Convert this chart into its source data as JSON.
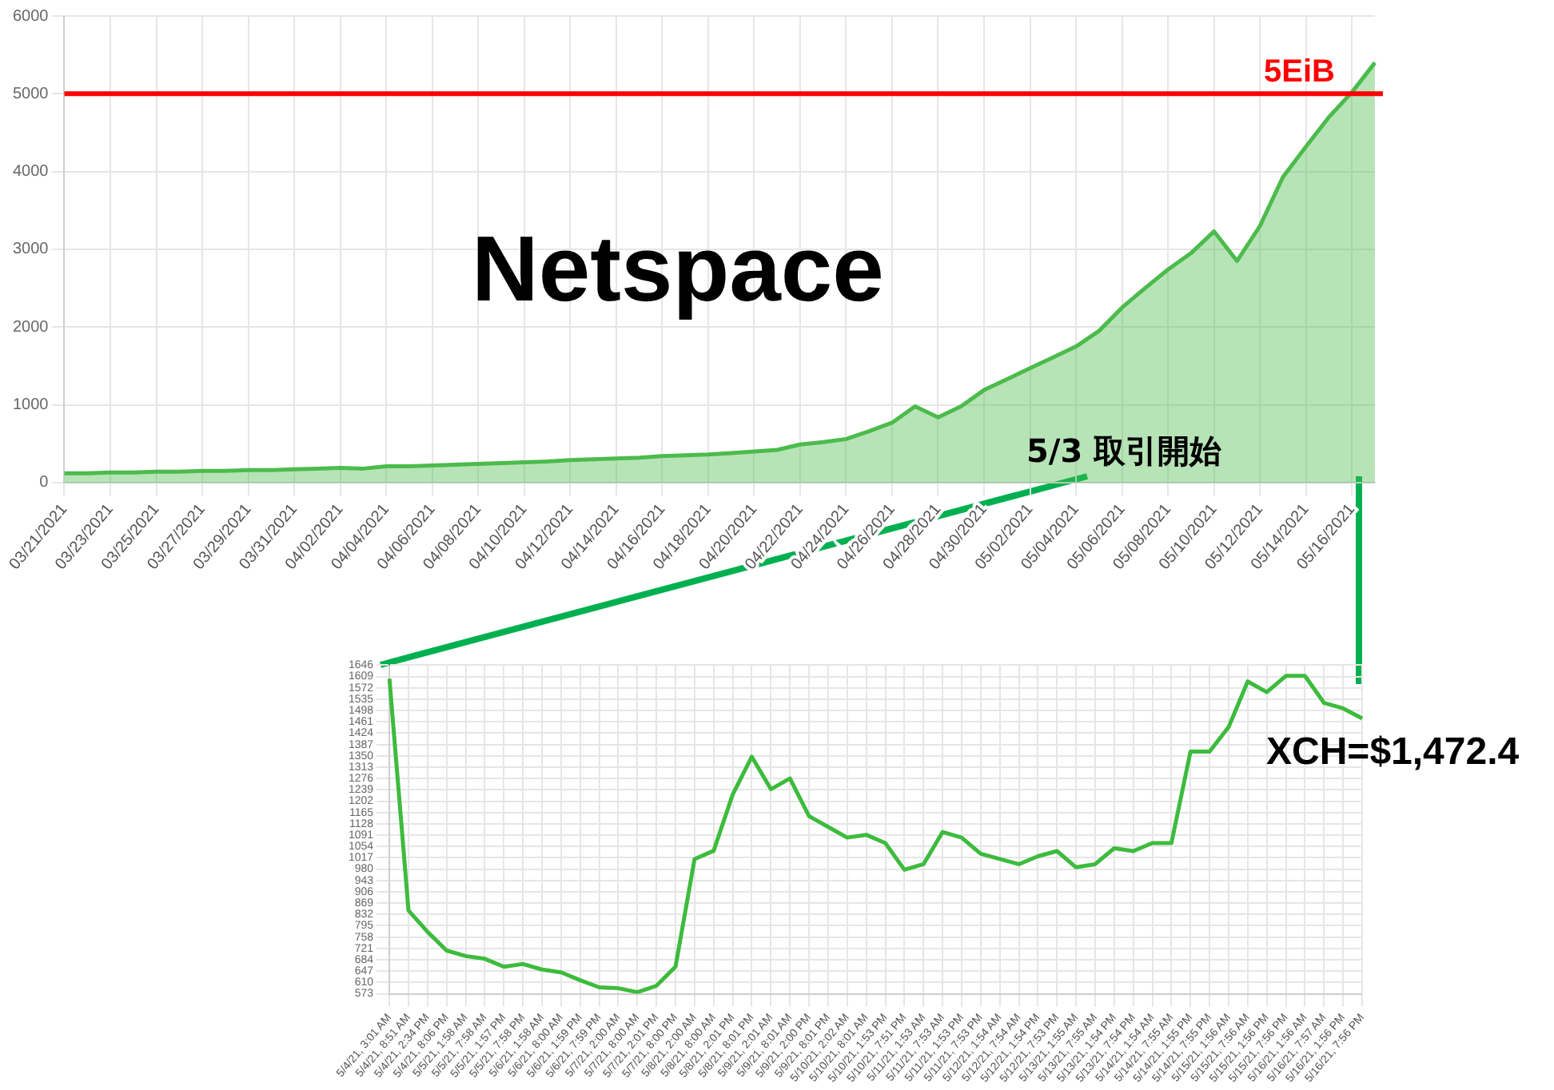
{
  "chart_data": [
    {
      "type": "area",
      "title": "Netspace",
      "categories": [
        "03/21/2021",
        null,
        "03/23/2021",
        null,
        "03/25/2021",
        null,
        "03/27/2021",
        null,
        "03/29/2021",
        null,
        "03/31/2021",
        null,
        "04/02/2021",
        null,
        "04/04/2021",
        null,
        "04/06/2021",
        null,
        "04/08/2021",
        null,
        "04/10/2021",
        null,
        "04/12/2021",
        null,
        "04/14/2021",
        null,
        "04/16/2021",
        null,
        "04/18/2021",
        null,
        "04/20/2021",
        null,
        "04/22/2021",
        null,
        "04/24/2021",
        null,
        "04/26/2021",
        null,
        "04/28/2021",
        null,
        "04/30/2021",
        null,
        "05/02/2021",
        null,
        "05/04/2021",
        null,
        "05/06/2021",
        null,
        "05/08/2021",
        null,
        "05/10/2021",
        null,
        "05/12/2021",
        null,
        "05/14/2021",
        null,
        "05/16/2021",
        null
      ],
      "values": [
        120,
        120,
        130,
        130,
        140,
        140,
        150,
        150,
        160,
        160,
        170,
        180,
        190,
        180,
        210,
        210,
        220,
        230,
        240,
        250,
        260,
        270,
        290,
        300,
        310,
        320,
        340,
        350,
        360,
        380,
        400,
        420,
        490,
        520,
        560,
        660,
        770,
        980,
        840,
        980,
        1190,
        1330,
        1470,
        1610,
        1750,
        1950,
        2250,
        2500,
        2740,
        2950,
        3230,
        2850,
        3300,
        3930,
        4320,
        4700,
        5020,
        5400
      ],
      "color": "#4cbb4c",
      "ylim": [
        0,
        6000
      ],
      "yticks": [
        0,
        1000,
        2000,
        3000,
        4000,
        5000,
        6000
      ],
      "grid": true,
      "ref_lines": [
        {
          "axis": "y",
          "value": 5000,
          "label": "5EiB",
          "color": "#ff0000"
        }
      ],
      "annotations": [
        "5/3 取引開始"
      ]
    },
    {
      "type": "line",
      "categories": [
        "5/4/21, 3:01 AM",
        "5/4/21, 8:51 AM",
        "5/4/21, 2:34 PM",
        "5/4/21, 8:06 PM",
        "5/5/21, 1:58 AM",
        "5/5/21, 7:58 AM",
        "5/5/21, 1:57 PM",
        "5/5/21, 7:58 PM",
        "5/6/21, 1:58 AM",
        "5/6/21, 8:00 AM",
        "5/6/21, 1:59 PM",
        "5/6/21, 7:59 PM",
        "5/7/21, 2:00 AM",
        "5/7/21, 8:00 AM",
        "5/7/21, 2:01 PM",
        "5/7/21, 8:00 PM",
        "5/8/21, 2:00 AM",
        "5/8/21, 8:00 AM",
        "5/8/21, 2:01 PM",
        "5/8/21, 8:01 PM",
        "5/9/21, 2:01 AM",
        "5/9/21, 8:01 AM",
        "5/9/21, 2:00 PM",
        "5/9/21, 8:01 PM",
        "5/10/21, 2:02 AM",
        "5/10/21, 8:01 AM",
        "5/10/21, 1:53 PM",
        "5/10/21, 7:51 PM",
        "5/11/21, 1:53 AM",
        "5/11/21, 7:53 AM",
        "5/11/21, 1:53 PM",
        "5/11/21, 7:53 PM",
        "5/12/21, 1:54 AM",
        "5/12/21, 7:54 AM",
        "5/12/21, 1:54 PM",
        "5/12/21, 7:53 PM",
        "5/13/21, 1:55 AM",
        "5/13/21, 7:55 AM",
        "5/13/21, 1:54 PM",
        "5/13/21, 7:54 PM",
        "5/14/21, 1:54 AM",
        "5/14/21, 7:55 AM",
        "5/14/21, 1:55 PM",
        "5/14/21, 7:55 PM",
        "5/15/21, 1:56 AM",
        "5/15/21, 7:56 AM",
        "5/15/21, 1:56 PM",
        "5/15/21, 7:56 PM",
        "5/16/21, 1:56 AM",
        "5/16/21, 7:57 AM",
        "5/16/21, 1:56 PM",
        "5/16/21, 7:56 PM"
      ],
      "values": [
        1602,
        845,
        775,
        714,
        696,
        687,
        661,
        670,
        652,
        643,
        617,
        594,
        591,
        578,
        599,
        661,
        1013,
        1040,
        1224,
        1347,
        1241,
        1276,
        1153,
        1118,
        1083,
        1092,
        1065,
        978,
        996,
        1101,
        1083,
        1030,
        1013,
        996,
        1022,
        1039,
        986,
        996,
        1048,
        1039,
        1065,
        1065,
        1364,
        1364,
        1444,
        1593,
        1558,
        1611,
        1611,
        1523,
        1505,
        1472
      ],
      "color": "#3dbb3d",
      "ylim": [
        573,
        1646
      ],
      "yticks": [
        573,
        610,
        647,
        684,
        721,
        758,
        795,
        832,
        869,
        906,
        943,
        980,
        1017,
        1054,
        1091,
        1128,
        1165,
        1202,
        1239,
        1276,
        1313,
        1350,
        1387,
        1424,
        1461,
        1498,
        1535,
        1572,
        1609,
        1646
      ],
      "grid": true,
      "annotations": [
        {
          "text": "XCH=$1,472.4",
          "x": "5/16/21, 7:56 PM",
          "y": 1472
        }
      ]
    }
  ]
}
